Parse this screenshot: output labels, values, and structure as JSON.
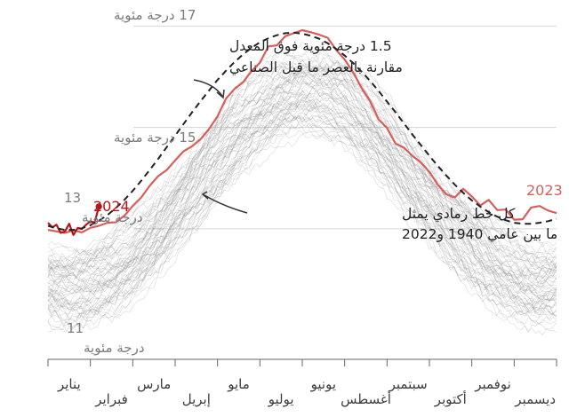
{
  "chart_data": {
    "type": "line",
    "y_unit_label": "درجة مئوية",
    "y_ticks": [
      {
        "value": 17,
        "label": "17 درجة مئوية"
      },
      {
        "value": 15,
        "label": "15 درجة مئوية"
      },
      {
        "value": 13,
        "label_num": "13",
        "label_unit": "درجة مئوية"
      },
      {
        "value": 11,
        "label_num": "11",
        "label_unit": "درجة مئوية"
      }
    ],
    "ylim": [
      10.6,
      17.2
    ],
    "x_range_months": [
      1,
      13
    ],
    "months": [
      "يناير",
      "فبراير",
      "مارس",
      "إبريل",
      "مايو",
      "يوليو",
      "يونيو",
      "أغسطس",
      "سبتمبر",
      "أكتوبر",
      "نوفمبر",
      "ديسمبر"
    ],
    "series": [
      {
        "name": "2023",
        "color": "#d65f5a",
        "x": [
          1.0,
          1.2,
          1.4,
          1.6,
          1.8,
          2.0,
          2.2,
          2.4,
          2.6,
          2.8,
          3.0,
          3.2,
          3.4,
          3.6,
          3.8,
          4.0,
          4.2,
          4.4,
          4.6,
          4.8,
          5.0,
          5.2,
          5.4,
          5.6,
          5.8,
          6.0,
          6.2,
          6.4,
          6.6,
          6.8,
          7.0,
          7.2,
          7.4,
          7.6,
          7.8,
          8.0,
          8.2,
          8.4,
          8.6,
          8.8,
          9.0,
          9.2,
          9.4,
          9.6,
          9.8,
          10.0,
          10.2,
          10.4,
          10.6,
          10.8,
          11.0,
          11.2,
          11.4,
          11.6,
          11.8,
          12.0,
          12.2,
          12.4,
          12.6,
          12.8,
          13.0
        ],
        "y": [
          12.98,
          12.95,
          12.92,
          12.97,
          12.93,
          13.02,
          13.06,
          13.12,
          13.13,
          13.26,
          13.45,
          13.62,
          13.85,
          14.04,
          14.16,
          14.35,
          14.53,
          14.63,
          14.77,
          14.97,
          15.22,
          15.57,
          15.76,
          15.89,
          16.11,
          16.28,
          16.6,
          16.62,
          16.8,
          16.86,
          16.92,
          16.88,
          16.83,
          16.77,
          16.53,
          16.34,
          16.09,
          15.78,
          15.52,
          15.16,
          14.99,
          14.68,
          14.6,
          14.44,
          14.31,
          14.12,
          13.87,
          13.68,
          13.62,
          13.79,
          13.64,
          13.46,
          13.57,
          13.37,
          13.38,
          13.18,
          13.19,
          13.42,
          13.45,
          13.36,
          13.31
        ]
      },
      {
        "name": "2024",
        "color": "#b8151b",
        "x": [
          1.0,
          1.1,
          1.2,
          1.3,
          1.4,
          1.5,
          1.6,
          1.7,
          1.8,
          1.9,
          2.0,
          2.1,
          2.2
        ],
        "y": [
          13.12,
          13.03,
          13.08,
          12.92,
          12.95,
          13.1,
          12.88,
          13.02,
          13.0,
          13.08,
          13.15,
          13.12,
          13.44
        ]
      },
      {
        "name": "1.5 درجة مئوية فوق المعدل مقارنة بالعصر ما قبل الصناعي",
        "style": "dashed",
        "color": "#222222",
        "x": [
          1.0,
          1.2,
          1.4,
          1.6,
          1.8,
          2.0,
          2.2,
          2.4,
          2.6,
          2.8,
          3.0,
          3.2,
          3.4,
          3.6,
          3.8,
          4.0,
          4.2,
          4.4,
          4.6,
          4.8,
          5.0,
          5.2,
          5.4,
          5.6,
          5.8,
          6.0,
          6.2,
          6.4,
          6.6,
          6.8,
          7.0,
          7.2,
          7.4,
          7.6,
          7.8,
          8.0,
          8.2,
          8.4,
          8.6,
          8.8,
          9.0,
          9.2,
          9.4,
          9.6,
          9.8,
          10.0,
          10.2,
          10.4,
          10.6,
          10.8,
          11.0,
          11.2,
          11.4,
          11.6,
          11.8,
          12.0,
          12.2,
          12.4,
          12.6,
          12.8,
          13.0
        ],
        "y": [
          13.06,
          13.01,
          12.98,
          12.98,
          13.01,
          13.07,
          13.16,
          13.27,
          13.41,
          13.57,
          13.75,
          13.95,
          14.16,
          14.38,
          14.61,
          14.84,
          15.07,
          15.3,
          15.52,
          15.73,
          15.94,
          16.12,
          16.29,
          16.44,
          16.57,
          16.68,
          16.76,
          16.82,
          16.86,
          16.87,
          16.85,
          16.81,
          16.75,
          16.66,
          16.55,
          16.42,
          16.27,
          16.1,
          15.92,
          15.72,
          15.51,
          15.3,
          15.08,
          14.86,
          14.65,
          14.44,
          14.24,
          14.05,
          13.87,
          13.71,
          13.56,
          13.44,
          13.33,
          13.24,
          13.17,
          13.12,
          13.1,
          13.1,
          13.12,
          13.15,
          13.2
        ]
      }
    ],
    "grey_band": {
      "color": "#8a8a8a",
      "x": [
        1.0,
        1.5,
        2.0,
        2.5,
        3.0,
        3.5,
        4.0,
        4.5,
        5.0,
        5.5,
        6.0,
        6.5,
        7.0,
        7.5,
        8.0,
        8.5,
        9.0,
        9.5,
        10.0,
        10.5,
        11.0,
        11.5,
        12.0,
        12.5,
        13.0
      ],
      "low": [
        11.1,
        11.0,
        11.1,
        11.25,
        11.55,
        11.95,
        12.45,
        12.95,
        13.5,
        14.0,
        14.4,
        14.7,
        14.85,
        14.8,
        14.6,
        14.2,
        13.75,
        13.2,
        12.7,
        12.2,
        11.75,
        11.4,
        11.15,
        11.0,
        11.05
      ],
      "high": [
        12.7,
        12.6,
        12.7,
        12.9,
        13.25,
        13.7,
        14.2,
        14.75,
        15.3,
        15.8,
        16.2,
        16.5,
        16.6,
        16.55,
        16.35,
        16.0,
        15.55,
        15.0,
        14.45,
        13.95,
        13.5,
        13.15,
        12.9,
        12.75,
        12.75
      ]
    },
    "annotations": {
      "top_line1": "1.5 درجة مئوية فوق المعدل",
      "top_line2": "مقارنة بالعصر ما قبل الصناعي",
      "mid_line1": "كل خط رمادي يمثل",
      "mid_line2": "ما بين عامي 1940 و2022"
    },
    "series_labels": {
      "y2023": "2023",
      "y2024": "2024"
    },
    "grid": true
  }
}
